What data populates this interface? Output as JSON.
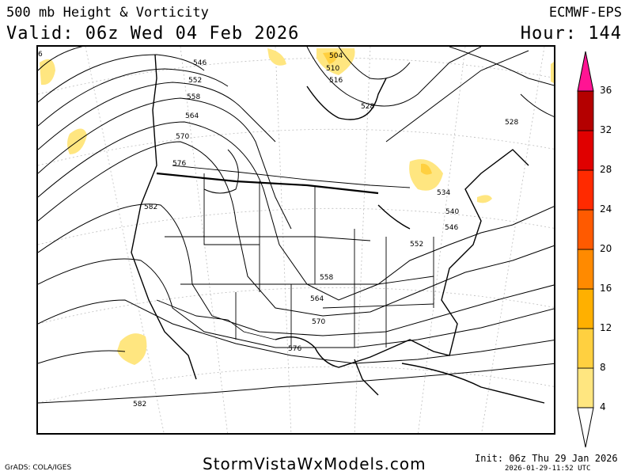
{
  "header": {
    "title": "500 mb Height & Vorticity",
    "valid": "Valid: 06z Wed 04 Feb 2026",
    "model": "ECMWF-EPS",
    "hour": "Hour: 144"
  },
  "footer": {
    "grads": "GrADS: COLA/IGES",
    "site": "StormVistaWxModels.com",
    "init": "Init: 06z Thu 29 Jan 2026",
    "stamp": "2026-01-29-11:52 UTC"
  },
  "colorbar": {
    "levels": [
      "4",
      "8",
      "12",
      "16",
      "20",
      "24",
      "28",
      "32",
      "36"
    ],
    "colors": [
      "#ffe680",
      "#ffd040",
      "#ffb000",
      "#ff8a00",
      "#ff5a00",
      "#ff2a00",
      "#e00000",
      "#b40000",
      "#8a0000",
      "#ff1493"
    ]
  },
  "contours": {
    "labels": [
      "6",
      "546",
      "552",
      "558",
      "564",
      "570",
      "576",
      "582",
      "504",
      "510",
      "516",
      "528",
      "528",
      "534",
      "540",
      "546",
      "552",
      "558",
      "564",
      "570",
      "576",
      "582"
    ]
  }
}
